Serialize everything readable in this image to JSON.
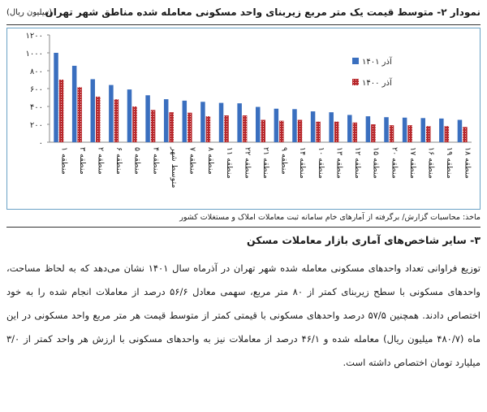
{
  "chart_title": "نمودار ۲- متوسط قیمت یک متر مربع زیربنای واحد مسکونی معامله شده مناطق شهر تهران",
  "unit_label": "(میلیون ریال)",
  "chart_data": {
    "type": "bar",
    "categories": [
      "منطقه ۱",
      "منطقه ۳",
      "منطقه ۲",
      "منطقه ۶",
      "منطقه ۵",
      "منطقه ۴",
      "متوسط شهر",
      "منطقه ۷",
      "منطقه ۸",
      "منطقه ۱۱",
      "منطقه ۲۲",
      "منطقه ۲۱",
      "منطقه ۹",
      "منطقه ۱۴",
      "منطقه ۱۰",
      "منطقه ۱۳",
      "منطقه ۱۲",
      "منطقه ۱۵",
      "منطقه ۲۰",
      "منطقه ۱۷",
      "منطقه ۱۶",
      "منطقه ۱۹",
      "منطقه ۱۸"
    ],
    "series": [
      {
        "name": "آذر ۱۴۰۱",
        "color": "#3a6fbf",
        "values": [
          1000,
          855,
          705,
          640,
          590,
          525,
          481,
          465,
          452,
          440,
          435,
          395,
          375,
          370,
          345,
          335,
          305,
          290,
          280,
          275,
          270,
          265,
          250
        ]
      },
      {
        "name": "آذر ۱۴۰۰",
        "color": "#b8282c",
        "values": [
          700,
          615,
          510,
          480,
          400,
          360,
          335,
          330,
          290,
          300,
          300,
          250,
          240,
          250,
          230,
          230,
          220,
          200,
          190,
          190,
          180,
          180,
          170
        ]
      }
    ],
    "ylim": [
      0,
      1200
    ],
    "yticks": [
      "۰",
      "۲۰۰",
      "۴۰۰",
      "۶۰۰",
      "۸۰۰",
      "۱۰۰۰",
      "۱۲۰۰"
    ],
    "legend_position": "top-right",
    "grid": false
  },
  "source_note": "ماخذ: محاسبات گزارش/ برگرفته از آمارهای خام سامانه ثبت معاملات املاک و مستغلات کشور",
  "section_heading": "۳- سایر شاخص‌های آماری بازار معاملات مسکن",
  "paragraph": "توزیع فراوانی تعداد واحدهای مسکونی معامله شده شهر تهران در آذرماه سال ۱۴۰۱ نشان می‌دهد که به لحاظ مساحت، واحدهای مسکونی با سطح زیربنای کمتر از ۸۰ متر مربع، سهمی معادل ۵۶/۶ درصد از معاملات انجام شده را به خود اختصاص دادند. همچنین ۵۷/۵ درصد واحدهای مسکونی با قیمتی کمتر از متوسط قیمت هر متر مربع واحد مسکونی در این ماه (۴۸۰/۷ میلیون ریال) معامله شده و ۴۶/۱ درصد از معاملات نیز به واحدهای مسکونی با ارزش هر واحد کمتر از ۳/۰ میلیارد تومان اختصاص داشته است."
}
